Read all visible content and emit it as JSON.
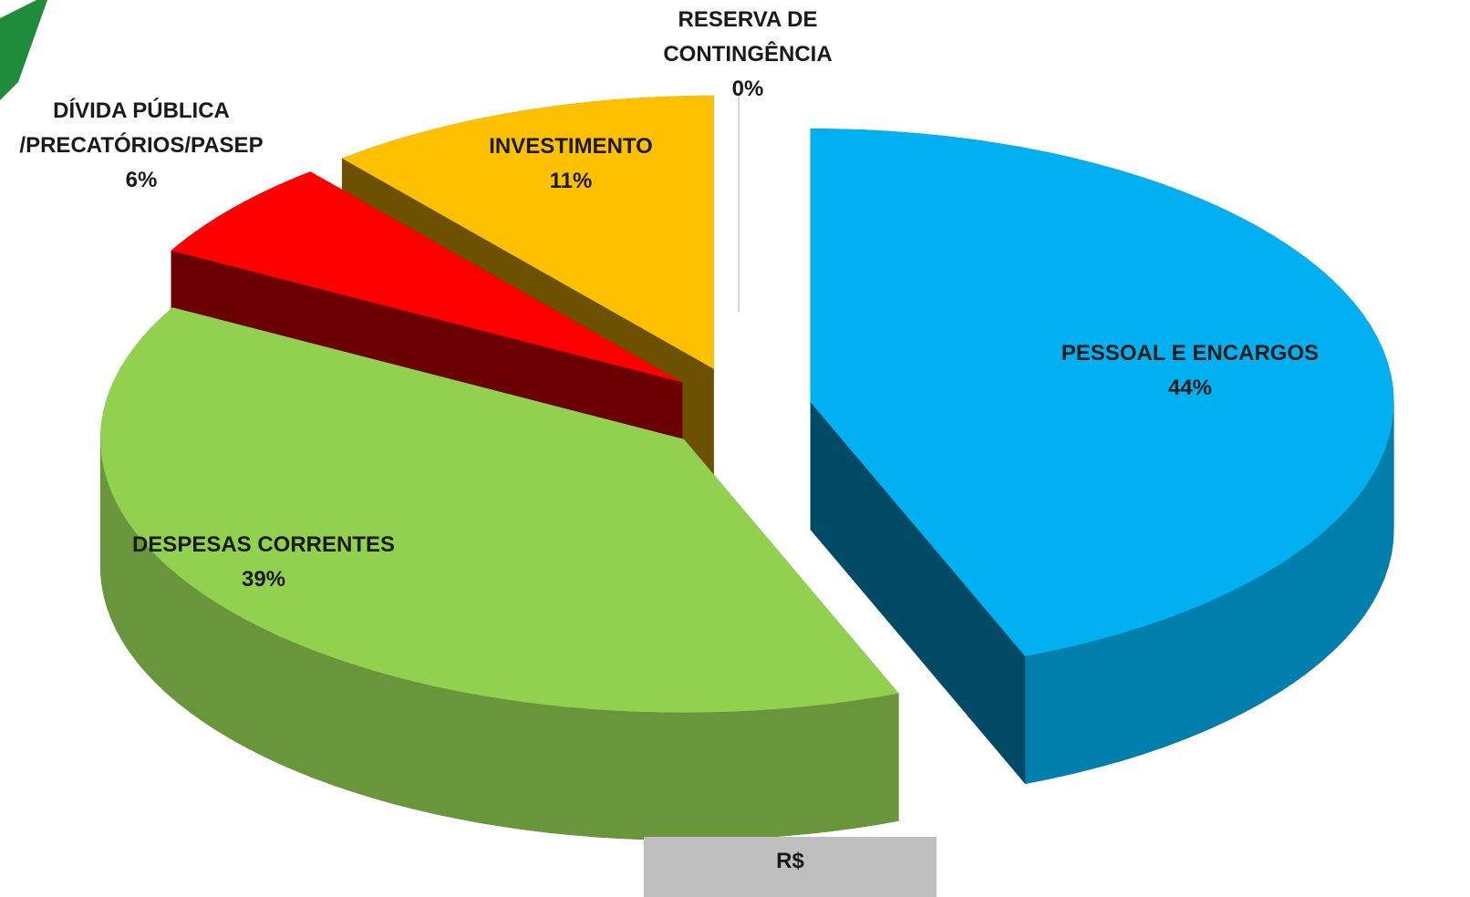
{
  "chart_data": {
    "type": "pie",
    "categories": [
      "PESSOAL E ENCARGOS",
      "DESPESAS CORRENTES",
      "DÍVIDA PÚBLICA /PRECATÓRIOS/PASEP",
      "INVESTIMENTO",
      "RESERVA DE CONTINGÊNCIA"
    ],
    "values": [
      44,
      39,
      6,
      11,
      0
    ],
    "value_labels": [
      "44%",
      "39%",
      "6%",
      "11%",
      "0%"
    ],
    "colors": [
      "#00b0f0",
      "#92d050",
      "#ff0000",
      "#ffc000",
      "#bfbfbf"
    ],
    "annotation": "R$"
  }
}
